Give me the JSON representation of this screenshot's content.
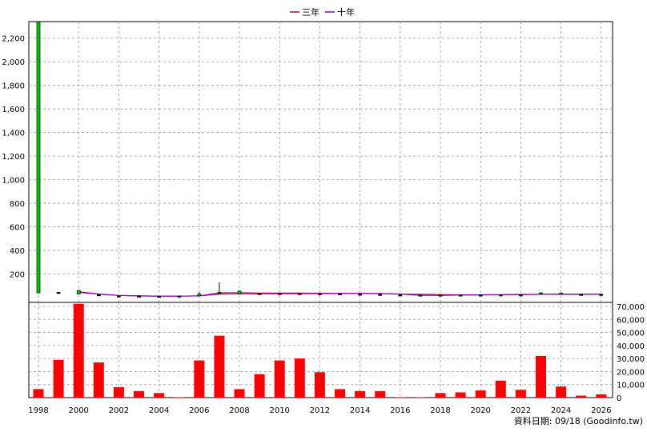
{
  "legend": {
    "items": [
      {
        "label": "三年",
        "color": "#cc0033"
      },
      {
        "label": "十年",
        "color": "#8800cc"
      }
    ]
  },
  "footer": "資料日期: 09/18 (Goodinfo.tw)",
  "chart_data": [
    {
      "type": "candlestick",
      "title": "",
      "ylim": [
        0,
        2350
      ],
      "y_ticks": [
        200,
        400,
        600,
        800,
        1000,
        1200,
        1400,
        1600,
        1800,
        2000,
        2200
      ],
      "x_ticks": [
        "1998",
        "2000",
        "2002",
        "2004",
        "2006",
        "2008",
        "2010",
        "2012",
        "2014",
        "2016",
        "2018",
        "2020",
        "2022",
        "2024",
        "2026"
      ],
      "xlim": [
        1998,
        2026.5
      ],
      "grid": true,
      "legend_position": "top-center",
      "candles": [
        {
          "x": 1998,
          "open": 40,
          "close": 2340,
          "high": 2340,
          "low": 40
        },
        {
          "x": 1999,
          "open": 45,
          "close": 35,
          "high": 48,
          "low": 33
        },
        {
          "x": 2000,
          "open": 30,
          "close": 60,
          "high": 65,
          "low": 28
        },
        {
          "x": 2001,
          "open": 25,
          "close": 20,
          "high": 28,
          "low": 18
        },
        {
          "x": 2002,
          "open": 15,
          "close": 12,
          "high": 17,
          "low": 10
        },
        {
          "x": 2003,
          "open": 14,
          "close": 11,
          "high": 15,
          "low": 10
        },
        {
          "x": 2004,
          "open": 12,
          "close": 10,
          "high": 13,
          "low": 9
        },
        {
          "x": 2005,
          "open": 14,
          "close": 11,
          "high": 15,
          "low": 10
        },
        {
          "x": 2006,
          "open": 15,
          "close": 30,
          "high": 45,
          "low": 12
        },
        {
          "x": 2007,
          "open": 35,
          "close": 45,
          "high": 130,
          "low": 28
        },
        {
          "x": 2008,
          "open": 30,
          "close": 55,
          "high": 60,
          "low": 28
        },
        {
          "x": 2009,
          "open": 35,
          "close": 30,
          "high": 40,
          "low": 28
        },
        {
          "x": 2010,
          "open": 35,
          "close": 32,
          "high": 38,
          "low": 30
        },
        {
          "x": 2011,
          "open": 35,
          "close": 30,
          "high": 38,
          "low": 28
        },
        {
          "x": 2012,
          "open": 34,
          "close": 30,
          "high": 36,
          "low": 28
        },
        {
          "x": 2013,
          "open": 33,
          "close": 30,
          "high": 35,
          "low": 28
        },
        {
          "x": 2014,
          "open": 30,
          "close": 28,
          "high": 32,
          "low": 26
        },
        {
          "x": 2015,
          "open": 28,
          "close": 25,
          "high": 30,
          "low": 22
        },
        {
          "x": 2016,
          "open": 24,
          "close": 22,
          "high": 26,
          "low": 20
        },
        {
          "x": 2017,
          "open": 22,
          "close": 20,
          "high": 24,
          "low": 18
        },
        {
          "x": 2018,
          "open": 22,
          "close": 21,
          "high": 24,
          "low": 19
        },
        {
          "x": 2019,
          "open": 23,
          "close": 21,
          "high": 25,
          "low": 19
        },
        {
          "x": 2020,
          "open": 23,
          "close": 21,
          "high": 25,
          "low": 19
        },
        {
          "x": 2021,
          "open": 24,
          "close": 22,
          "high": 26,
          "low": 20
        },
        {
          "x": 2022,
          "open": 24,
          "close": 22,
          "high": 26,
          "low": 20
        },
        {
          "x": 2023,
          "open": 30,
          "close": 40,
          "high": 45,
          "low": 28
        },
        {
          "x": 2024,
          "open": 32,
          "close": 38,
          "high": 42,
          "low": 28
        },
        {
          "x": 2025,
          "open": 28,
          "close": 26,
          "high": 30,
          "low": 24
        },
        {
          "x": 2026,
          "open": 28,
          "close": 26,
          "high": 30,
          "low": 24
        }
      ],
      "series": [
        {
          "name": "三年",
          "color": "#cc0033",
          "x": [
            2000,
            2001,
            2002,
            2003,
            2004,
            2005,
            2006,
            2007,
            2008,
            2009,
            2010,
            2011,
            2012,
            2013,
            2014,
            2015,
            2016,
            2017,
            2018,
            2019,
            2020,
            2021,
            2022,
            2023,
            2024,
            2025,
            2026
          ],
          "values": [
            50,
            30,
            18,
            14,
            12,
            12,
            14,
            40,
            42,
            38,
            38,
            38,
            37,
            36,
            36,
            35,
            30,
            28,
            26,
            24,
            24,
            24,
            25,
            28,
            30,
            30,
            30
          ]
        },
        {
          "name": "十年",
          "color": "#8800cc",
          "x": [
            2000,
            2001,
            2002,
            2003,
            2004,
            2005,
            2006,
            2007,
            2008,
            2009,
            2010,
            2011,
            2012,
            2013,
            2014,
            2015,
            2016,
            2017,
            2018,
            2019,
            2020,
            2021,
            2022,
            2023,
            2024,
            2025,
            2026
          ],
          "values": [
            45,
            30,
            18,
            14,
            12,
            12,
            15,
            30,
            32,
            32,
            33,
            33,
            34,
            35,
            35,
            34,
            30,
            20,
            18,
            22,
            23,
            25,
            27,
            28,
            28,
            28,
            28
          ]
        }
      ]
    },
    {
      "type": "bar",
      "title": "",
      "ylim": [
        0,
        70000
      ],
      "y_ticks": [
        0,
        10000,
        20000,
        30000,
        40000,
        50000,
        60000,
        70000
      ],
      "y_tick_labels": [
        "0",
        "10,000",
        "20,000",
        "30,000",
        "40,000",
        "50,000",
        "60,000",
        "70,000"
      ],
      "xlim": [
        1998,
        2026.5
      ],
      "grid": true,
      "bar_color": "#ff0000",
      "categories": [
        1998,
        1999,
        2000,
        2001,
        2002,
        2003,
        2004,
        2005,
        2006,
        2007,
        2008,
        2009,
        2010,
        2011,
        2012,
        2013,
        2014,
        2015,
        2016,
        2017,
        2018,
        2019,
        2020,
        2021,
        2022,
        2023,
        2024,
        2025,
        2026
      ],
      "values": [
        6500,
        29000,
        72000,
        27000,
        8000,
        5000,
        3500,
        300,
        28500,
        47500,
        6500,
        18000,
        28500,
        30000,
        19500,
        6500,
        5000,
        5000,
        200,
        200,
        3500,
        4000,
        5500,
        13000,
        6000,
        32000,
        8500,
        1500,
        2500
      ]
    }
  ]
}
